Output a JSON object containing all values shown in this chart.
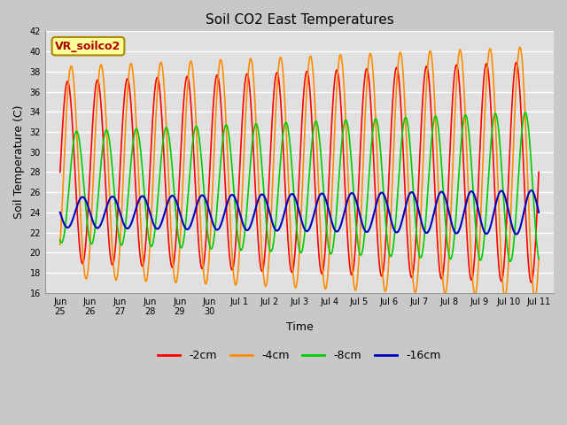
{
  "title": "Soil CO2 East Temperatures",
  "ylabel": "Soil Temperature (C)",
  "xlabel": "Time",
  "annotation": "VR_soilco2",
  "ylim": [
    16,
    42
  ],
  "series_order": [
    "-2cm",
    "-4cm",
    "-8cm",
    "-16cm"
  ],
  "series": {
    "-2cm": {
      "color": "#FF0000",
      "lw": 1.2,
      "amplitude_start": 9.0,
      "amplitude_end": 11.0,
      "mean": 28.0,
      "phase": 0.0,
      "period": 1.0
    },
    "-4cm": {
      "color": "#FF8C00",
      "lw": 1.2,
      "amplitude_start": 10.5,
      "amplitude_end": 12.5,
      "mean": 28.0,
      "phase": 0.12,
      "period": 1.0
    },
    "-8cm": {
      "color": "#00CC00",
      "lw": 1.2,
      "amplitude_start": 5.5,
      "amplitude_end": 7.5,
      "mean": 26.5,
      "phase": 0.3,
      "period": 1.0
    },
    "-16cm": {
      "color": "#0000BB",
      "lw": 1.5,
      "amplitude_start": 1.5,
      "amplitude_end": 2.2,
      "mean": 24.0,
      "phase": 0.5,
      "period": 1.0
    }
  },
  "legend_labels": [
    "-2cm",
    "-4cm",
    "-8cm",
    "-16cm"
  ],
  "legend_colors": [
    "#FF0000",
    "#FF8C00",
    "#00CC00",
    "#0000BB"
  ],
  "fig_facecolor": "#C8C8C8",
  "ax_facecolor": "#E0E0E0",
  "grid_color": "#FFFFFF",
  "annotation_bg": "#FFFF99",
  "annotation_border": "#AA8800",
  "annotation_text_color": "#AA0000",
  "tick_fontsize": 7,
  "title_fontsize": 11,
  "label_fontsize": 9,
  "legend_fontsize": 9,
  "yticks": [
    16,
    18,
    20,
    22,
    24,
    26,
    28,
    30,
    32,
    34,
    36,
    38,
    40,
    42
  ],
  "xtick_positions": [
    0,
    1,
    2,
    3,
    4,
    5,
    6,
    7,
    8,
    9,
    10,
    11,
    12,
    13,
    14,
    15,
    16
  ],
  "xtick_labels": [
    "Jun\n25",
    "Jun\n26",
    "Jun\n27",
    "Jun\n28",
    "Jun\n29",
    "Jun\n30",
    "Jul 1",
    "Jul 2",
    "Jul 3",
    "Jul 4",
    "Jul 5",
    "Jul 6",
    "Jul 7",
    "Jul 8",
    "Jul 9",
    "Jul 10",
    "Jul 11"
  ],
  "xlim": [
    -0.5,
    16.5
  ]
}
